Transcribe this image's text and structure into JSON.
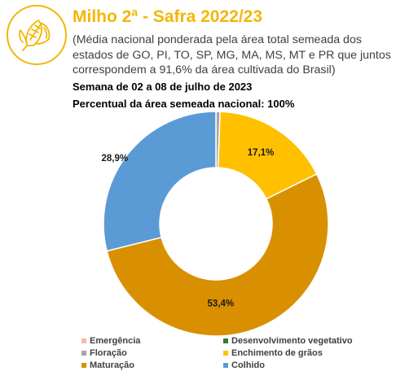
{
  "header": {
    "title": "Milho 2ª - Safra 2022/23",
    "subtitle": "(Média nacional ponderada pela área total semeada dos estados de GO, PI, TO, SP, MG, MA, MS, MT e PR que juntos correspondem a 91,6% da área cultivada do Brasil)",
    "week": "Semana de 02 a 08 de julho de 2023",
    "share": "Percentual da área semeada nacional: 100%"
  },
  "logo": {
    "icon": "corn-icon",
    "color": "#f2b705"
  },
  "chart_data": {
    "type": "pie",
    "hole": 0.5,
    "start": "12 o'clock, clockwise",
    "series": [
      {
        "name": "Emergência",
        "value": 0.0,
        "color": "#f4b9a6"
      },
      {
        "name": "Desenvolvimento vegetativo",
        "value": 0.0,
        "color": "#2e7d32"
      },
      {
        "name": "Floração",
        "value": 0.6,
        "color": "#a6a6a6"
      },
      {
        "name": "Enchimento de grãos",
        "value": 17.1,
        "color": "#ffc000"
      },
      {
        "name": "Maturação",
        "value": 53.4,
        "color": "#d99000"
      },
      {
        "name": "Colhido",
        "value": 28.9,
        "color": "#5b9bd5"
      }
    ],
    "data_labels": [
      {
        "series": "Enchimento de grãos",
        "text": "17,1%"
      },
      {
        "series": "Maturação",
        "text": "53,4%"
      },
      {
        "series": "Colhido",
        "text": "28,9%"
      }
    ],
    "legend": {
      "position": "bottom",
      "order": [
        "Emergência",
        "Desenvolvimento vegetativo",
        "Floração",
        "Enchimento de grãos",
        "Maturação",
        "Colhido"
      ]
    }
  }
}
